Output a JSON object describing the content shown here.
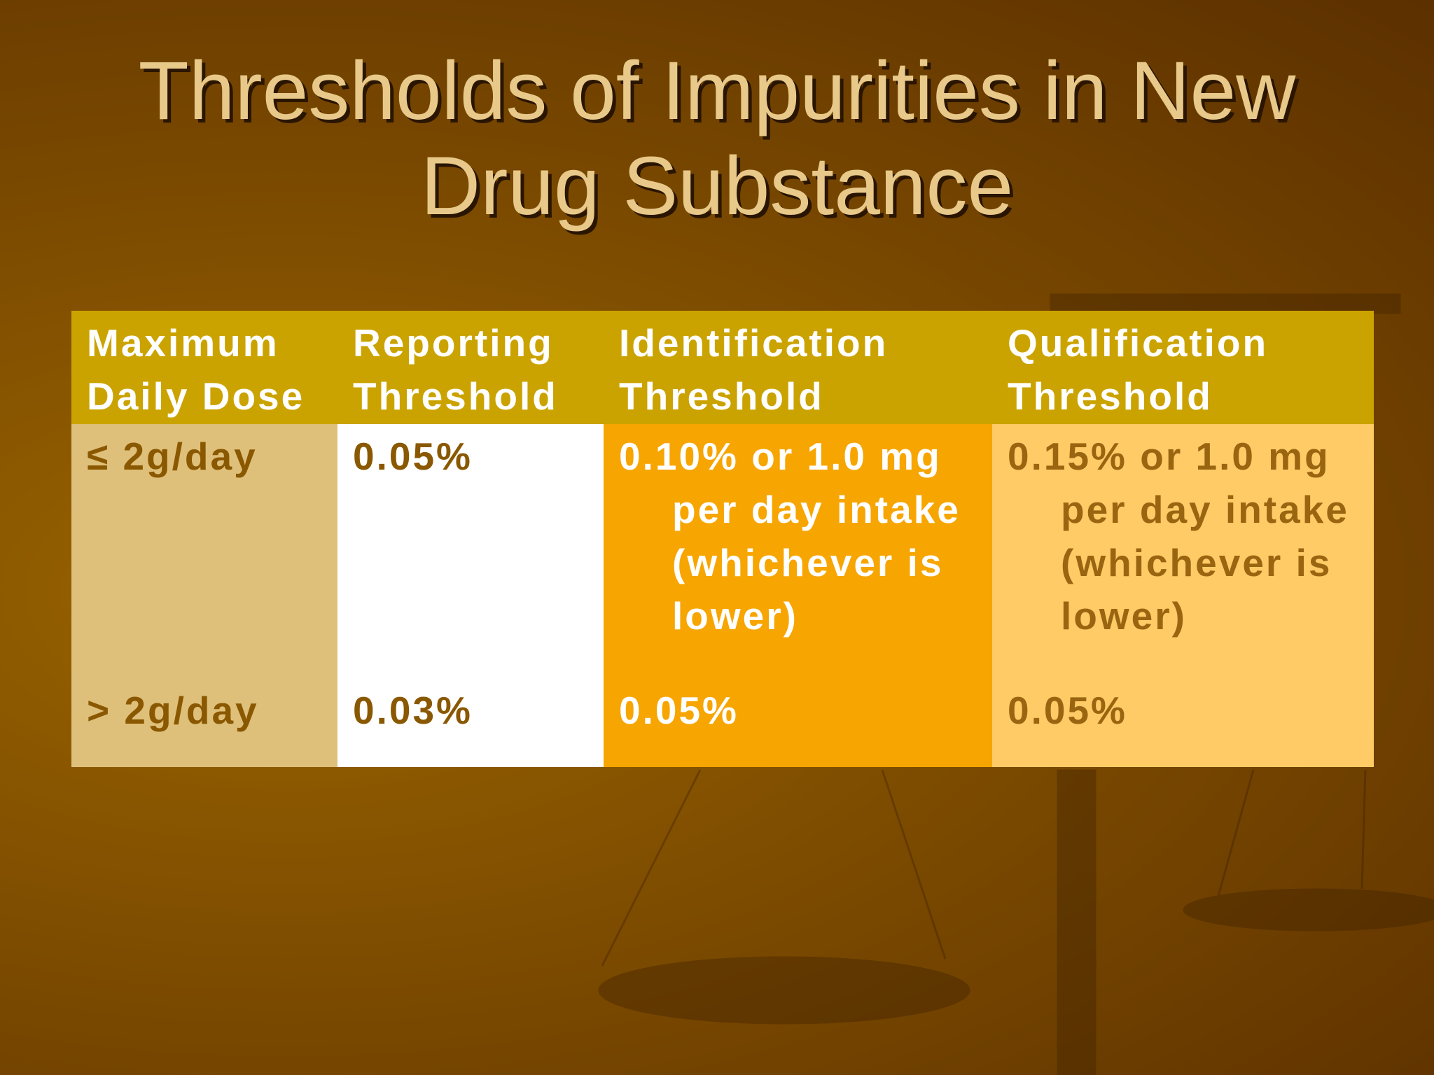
{
  "title": "Thresholds of Impurities in New Drug Substance",
  "table": {
    "header": [
      "Maximum Daily Dose",
      "Reporting Threshold",
      "Identification Threshold",
      "Qualification Threshold"
    ],
    "rows": [
      [
        "≤ 2g/day",
        "0.05%",
        "0.10% or 1.0 mg per day intake (whichever is lower)",
        "0.15% or 1.0 mg per day intake (whichever is lower)"
      ],
      [
        "> 2g/day",
        "0.03%",
        "0.05%",
        "0.05%"
      ]
    ]
  }
}
